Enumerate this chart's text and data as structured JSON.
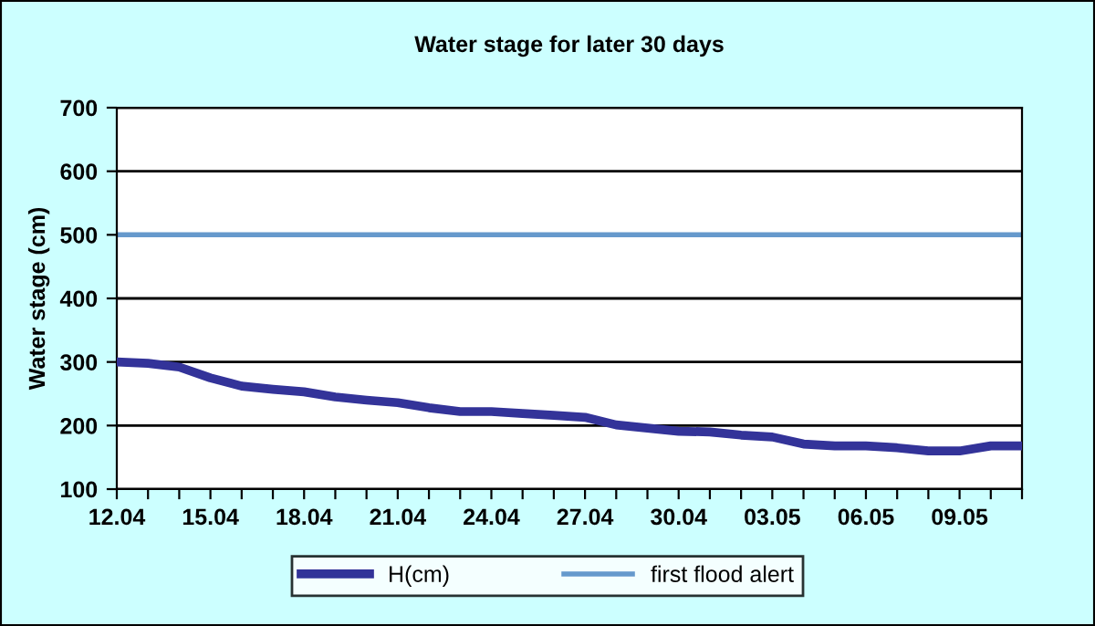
{
  "chart_data": {
    "type": "line",
    "title": "Water stage for later 30 days",
    "ylabel": "Water stage (cm)",
    "categories": [
      "12.04",
      null,
      null,
      "15.04",
      null,
      null,
      "18.04",
      null,
      null,
      "21.04",
      null,
      null,
      "24.04",
      null,
      null,
      "27.04",
      null,
      null,
      "30.04",
      null,
      null,
      "03.05",
      null,
      null,
      "06.05",
      null,
      null,
      "09.05",
      null,
      null
    ],
    "series": [
      {
        "name": "H(cm)",
        "color": "#333399",
        "values": [
          300,
          298,
          292,
          275,
          262,
          257,
          253,
          245,
          240,
          236,
          228,
          222,
          222,
          219,
          216,
          213,
          201,
          196,
          191,
          190,
          185,
          182,
          171,
          168,
          168,
          165,
          160,
          160,
          168,
          168
        ]
      }
    ],
    "ref_lines": [
      {
        "axis": "y",
        "value": 500,
        "label": "first flood alert",
        "color": "#6699cc",
        "line_style": "solid"
      }
    ],
    "ylim": [
      100,
      700
    ],
    "yticks": [
      100,
      200,
      300,
      400,
      500,
      600,
      700
    ],
    "grid": "y",
    "legend": "bottom",
    "marker": "none",
    "line_style": "solid"
  }
}
